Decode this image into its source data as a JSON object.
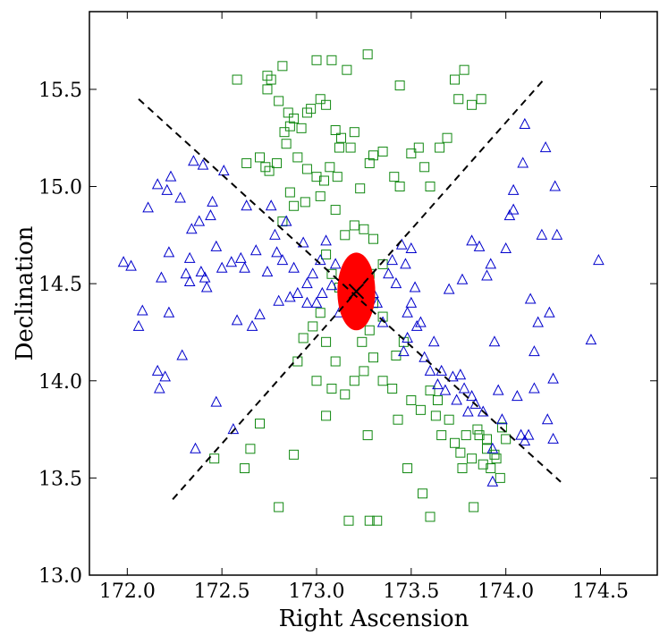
{
  "chart_data": {
    "type": "scatter",
    "title": "",
    "xlabel": "Right Ascension",
    "ylabel": "Declination",
    "xlim": [
      171.8,
      174.8
    ],
    "ylim": [
      13.0,
      15.9
    ],
    "xticks": [
      172.0,
      172.5,
      173.0,
      173.5,
      174.0,
      174.5
    ],
    "xtick_labels": [
      "172.0",
      "172.5",
      "173.0",
      "173.5",
      "174.0",
      "174.5"
    ],
    "yticks": [
      13.0,
      13.5,
      14.0,
      14.5,
      15.0,
      15.5
    ],
    "ytick_labels": [
      "13.0",
      "13.5",
      "14.0",
      "14.5",
      "15.0",
      "15.5"
    ],
    "grid": false,
    "colors": {
      "triangles": "#0000cc",
      "squares": "#118811",
      "ellipse": "#ff0000",
      "lines": "#000000"
    },
    "series": [
      {
        "marker": "triangle",
        "color": "#0000cc",
        "points": [
          [
            171.98,
            14.61
          ],
          [
            172.02,
            14.59
          ],
          [
            172.06,
            14.28
          ],
          [
            172.08,
            14.36
          ],
          [
            172.11,
            14.89
          ],
          [
            172.16,
            15.01
          ],
          [
            172.16,
            14.05
          ],
          [
            172.17,
            13.96
          ],
          [
            172.18,
            14.53
          ],
          [
            172.2,
            14.02
          ],
          [
            172.21,
            14.98
          ],
          [
            172.22,
            14.35
          ],
          [
            172.22,
            14.66
          ],
          [
            172.23,
            15.05
          ],
          [
            172.28,
            14.94
          ],
          [
            172.29,
            14.13
          ],
          [
            172.31,
            14.55
          ],
          [
            172.33,
            14.63
          ],
          [
            172.33,
            14.51
          ],
          [
            172.34,
            14.78
          ],
          [
            172.35,
            15.13
          ],
          [
            172.36,
            13.65
          ],
          [
            172.38,
            14.82
          ],
          [
            172.39,
            14.56
          ],
          [
            172.4,
            15.11
          ],
          [
            172.41,
            14.53
          ],
          [
            172.42,
            14.48
          ],
          [
            172.44,
            14.85
          ],
          [
            172.45,
            14.92
          ],
          [
            172.47,
            14.69
          ],
          [
            172.47,
            13.89
          ],
          [
            172.5,
            14.58
          ],
          [
            172.51,
            15.08
          ],
          [
            172.55,
            14.61
          ],
          [
            172.58,
            14.31
          ],
          [
            172.6,
            14.63
          ],
          [
            172.62,
            14.58
          ],
          [
            172.63,
            14.9
          ],
          [
            172.66,
            14.28
          ],
          [
            172.68,
            14.67
          ],
          [
            172.7,
            14.34
          ],
          [
            172.74,
            14.56
          ],
          [
            172.76,
            14.9
          ],
          [
            172.78,
            14.75
          ],
          [
            172.79,
            14.66
          ],
          [
            172.8,
            14.41
          ],
          [
            172.82,
            14.62
          ],
          [
            172.84,
            14.82
          ],
          [
            172.86,
            14.43
          ],
          [
            172.88,
            14.58
          ],
          [
            172.9,
            14.45
          ],
          [
            172.93,
            14.71
          ],
          [
            172.95,
            14.4
          ],
          [
            172.98,
            14.55
          ],
          [
            173.0,
            14.4
          ],
          [
            173.02,
            14.62
          ],
          [
            173.05,
            14.72
          ],
          [
            173.08,
            14.49
          ],
          [
            173.1,
            14.6
          ],
          [
            173.12,
            14.35
          ],
          [
            172.56,
            13.75
          ],
          [
            172.95,
            14.5
          ],
          [
            173.03,
            14.45
          ],
          [
            173.3,
            14.45
          ],
          [
            173.32,
            14.4
          ],
          [
            173.35,
            14.3
          ],
          [
            173.38,
            14.55
          ],
          [
            173.4,
            14.62
          ],
          [
            173.42,
            14.5
          ],
          [
            173.45,
            14.7
          ],
          [
            173.47,
            14.6
          ],
          [
            173.48,
            14.35
          ],
          [
            173.5,
            14.68
          ],
          [
            173.52,
            14.48
          ],
          [
            173.46,
            14.15
          ],
          [
            173.48,
            14.22
          ],
          [
            173.5,
            14.4
          ],
          [
            173.53,
            14.28
          ],
          [
            173.55,
            14.3
          ],
          [
            173.57,
            14.12
          ],
          [
            173.6,
            14.05
          ],
          [
            173.62,
            14.2
          ],
          [
            173.64,
            13.98
          ],
          [
            173.66,
            14.05
          ],
          [
            173.68,
            13.95
          ],
          [
            173.7,
            14.47
          ],
          [
            173.72,
            14.02
          ],
          [
            173.74,
            13.9
          ],
          [
            173.76,
            14.03
          ],
          [
            173.78,
            13.96
          ],
          [
            173.8,
            13.84
          ],
          [
            173.82,
            13.92
          ],
          [
            173.84,
            13.88
          ],
          [
            173.86,
            14.69
          ],
          [
            173.88,
            13.84
          ],
          [
            173.9,
            14.54
          ],
          [
            173.92,
            14.6
          ],
          [
            173.94,
            14.2
          ],
          [
            173.96,
            13.95
          ],
          [
            173.98,
            13.8
          ],
          [
            174.0,
            14.68
          ],
          [
            174.02,
            14.85
          ],
          [
            174.04,
            14.98
          ],
          [
            174.06,
            13.92
          ],
          [
            174.08,
            13.72
          ],
          [
            174.1,
            13.69
          ],
          [
            174.12,
            13.72
          ],
          [
            174.13,
            14.42
          ],
          [
            174.15,
            14.15
          ],
          [
            174.17,
            14.3
          ],
          [
            174.19,
            14.75
          ],
          [
            174.21,
            15.2
          ],
          [
            174.23,
            14.35
          ],
          [
            174.25,
            13.7
          ],
          [
            174.25,
            14.01
          ],
          [
            174.26,
            15.0
          ],
          [
            174.27,
            14.75
          ],
          [
            174.22,
            13.8
          ],
          [
            174.45,
            14.21
          ],
          [
            174.49,
            14.62
          ],
          [
            174.1,
            15.32
          ],
          [
            174.09,
            15.12
          ],
          [
            173.82,
            14.72
          ],
          [
            173.77,
            14.52
          ],
          [
            173.93,
            13.65
          ],
          [
            174.04,
            14.88
          ],
          [
            174.15,
            13.96
          ],
          [
            173.93,
            13.48
          ]
        ]
      },
      {
        "marker": "square",
        "color": "#118811",
        "points": [
          [
            173.27,
            15.68
          ],
          [
            173.08,
            15.65
          ],
          [
            173.0,
            15.65
          ],
          [
            173.16,
            15.6
          ],
          [
            172.82,
            15.62
          ],
          [
            172.74,
            15.57
          ],
          [
            172.58,
            15.55
          ],
          [
            172.74,
            15.5
          ],
          [
            172.76,
            15.55
          ],
          [
            172.8,
            15.44
          ],
          [
            172.85,
            15.38
          ],
          [
            172.88,
            15.35
          ],
          [
            172.92,
            15.3
          ],
          [
            172.95,
            15.38
          ],
          [
            172.97,
            15.4
          ],
          [
            173.02,
            15.45
          ],
          [
            173.05,
            15.42
          ],
          [
            172.84,
            15.22
          ],
          [
            172.83,
            15.28
          ],
          [
            172.86,
            15.31
          ],
          [
            173.1,
            15.29
          ],
          [
            173.13,
            15.25
          ],
          [
            173.2,
            15.28
          ],
          [
            173.12,
            15.2
          ],
          [
            173.18,
            15.2
          ],
          [
            172.7,
            15.15
          ],
          [
            172.73,
            15.1
          ],
          [
            172.75,
            15.08
          ],
          [
            172.79,
            15.12
          ],
          [
            172.9,
            15.15
          ],
          [
            172.95,
            15.09
          ],
          [
            173.0,
            15.05
          ],
          [
            173.04,
            15.03
          ],
          [
            173.07,
            15.1
          ],
          [
            173.11,
            15.05
          ],
          [
            172.63,
            15.12
          ],
          [
            172.86,
            14.97
          ],
          [
            173.23,
            14.99
          ],
          [
            173.28,
            15.12
          ],
          [
            173.3,
            15.16
          ],
          [
            173.35,
            15.18
          ],
          [
            173.41,
            15.05
          ],
          [
            173.44,
            15.0
          ],
          [
            173.5,
            15.17
          ],
          [
            173.54,
            15.2
          ],
          [
            173.57,
            15.1
          ],
          [
            173.6,
            15.0
          ],
          [
            173.65,
            15.2
          ],
          [
            173.69,
            15.25
          ],
          [
            173.73,
            15.55
          ],
          [
            173.78,
            15.6
          ],
          [
            173.82,
            15.42
          ],
          [
            173.87,
            15.45
          ],
          [
            173.75,
            15.45
          ],
          [
            173.44,
            15.52
          ],
          [
            172.82,
            14.82
          ],
          [
            172.88,
            14.9
          ],
          [
            172.94,
            14.92
          ],
          [
            173.02,
            14.95
          ],
          [
            173.1,
            14.88
          ],
          [
            173.15,
            14.75
          ],
          [
            173.2,
            14.8
          ],
          [
            173.25,
            14.78
          ],
          [
            173.3,
            14.73
          ],
          [
            173.35,
            14.6
          ],
          [
            173.05,
            14.65
          ],
          [
            173.08,
            14.55
          ],
          [
            173.12,
            14.48
          ],
          [
            173.16,
            14.55
          ],
          [
            173.22,
            14.6
          ],
          [
            173.28,
            14.55
          ],
          [
            173.3,
            14.4
          ],
          [
            173.35,
            14.33
          ],
          [
            173.28,
            14.26
          ],
          [
            173.24,
            14.2
          ],
          [
            173.1,
            14.1
          ],
          [
            173.05,
            14.2
          ],
          [
            173.02,
            14.35
          ],
          [
            172.98,
            14.28
          ],
          [
            172.93,
            14.22
          ],
          [
            172.9,
            14.1
          ],
          [
            173.0,
            14.0
          ],
          [
            173.08,
            13.96
          ],
          [
            173.15,
            13.93
          ],
          [
            173.2,
            14.0
          ],
          [
            173.25,
            14.05
          ],
          [
            173.3,
            14.12
          ],
          [
            173.35,
            14.0
          ],
          [
            173.4,
            13.96
          ],
          [
            173.42,
            14.13
          ],
          [
            173.46,
            14.2
          ],
          [
            173.5,
            13.9
          ],
          [
            173.55,
            13.85
          ],
          [
            173.6,
            13.95
          ],
          [
            173.64,
            13.9
          ],
          [
            173.66,
            13.72
          ],
          [
            173.7,
            13.8
          ],
          [
            173.73,
            13.68
          ],
          [
            173.76,
            13.63
          ],
          [
            173.79,
            13.72
          ],
          [
            173.82,
            13.6
          ],
          [
            173.86,
            13.72
          ],
          [
            173.88,
            13.57
          ],
          [
            173.9,
            13.65
          ],
          [
            173.92,
            13.55
          ],
          [
            173.95,
            13.6
          ],
          [
            173.97,
            13.5
          ],
          [
            174.0,
            13.7
          ],
          [
            173.83,
            13.35
          ],
          [
            173.77,
            13.55
          ],
          [
            173.6,
            13.3
          ],
          [
            173.56,
            13.42
          ],
          [
            173.48,
            13.55
          ],
          [
            173.28,
            13.28
          ],
          [
            173.32,
            13.28
          ],
          [
            173.17,
            13.28
          ],
          [
            172.8,
            13.35
          ],
          [
            172.7,
            13.78
          ],
          [
            172.62,
            13.55
          ],
          [
            172.65,
            13.65
          ],
          [
            172.46,
            13.6
          ],
          [
            172.88,
            13.62
          ],
          [
            173.05,
            13.82
          ],
          [
            173.27,
            13.72
          ],
          [
            173.43,
            13.8
          ],
          [
            173.63,
            13.82
          ],
          [
            173.9,
            13.7
          ],
          [
            173.85,
            13.75
          ],
          [
            173.94,
            13.62
          ],
          [
            173.98,
            13.76
          ]
        ]
      }
    ],
    "centroid": {
      "x": 173.21,
      "y": 14.46,
      "marker": "x"
    },
    "ellipse": {
      "cx": 173.21,
      "cy": 14.46,
      "rx": 0.1,
      "ry": 0.2
    },
    "dashed_lines": [
      {
        "x1": 172.06,
        "y1": 15.45,
        "x2": 174.29,
        "y2": 13.48
      },
      {
        "x1": 172.24,
        "y1": 13.39,
        "x2": 174.2,
        "y2": 15.55
      }
    ]
  }
}
